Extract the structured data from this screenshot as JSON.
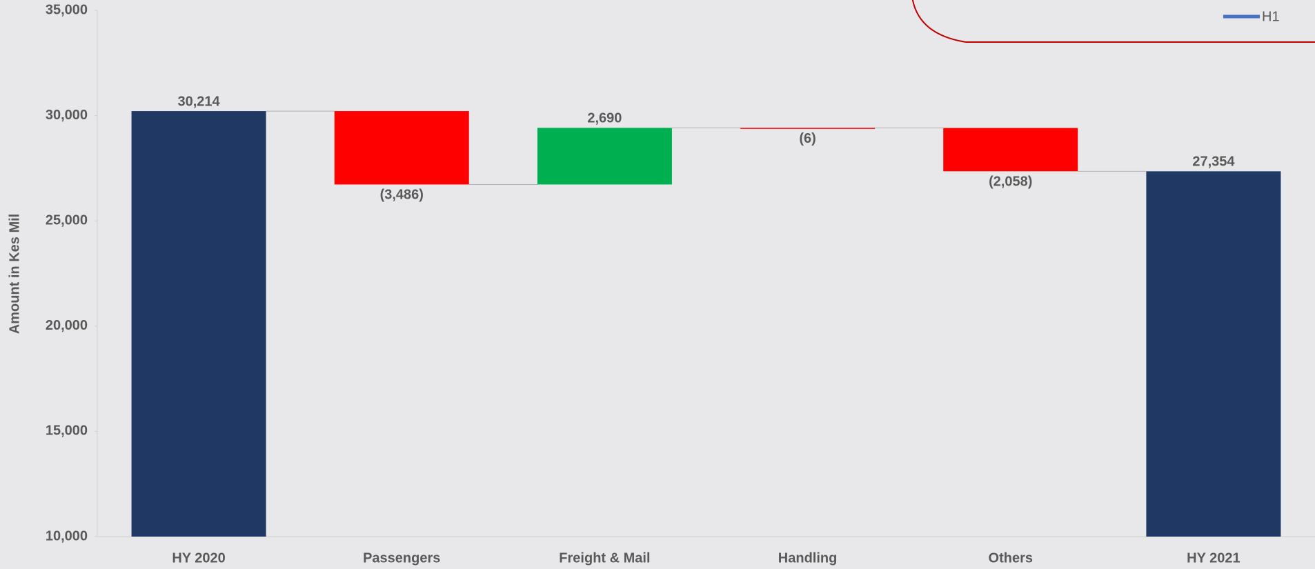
{
  "chart_data": {
    "type": "waterfall",
    "y_axis_label": "Amount in Kes Mil",
    "categories": [
      "HY 2020",
      "Passengers",
      "Freight & Mail",
      "Handling",
      "Others",
      "HY 2021"
    ],
    "values": [
      30214,
      -3486,
      2690,
      -6,
      -2058,
      27354
    ],
    "value_labels": [
      "30,214",
      "(3,486)",
      "2,690",
      "(6)",
      "(2,058)",
      "27,354"
    ],
    "is_total": [
      true,
      false,
      false,
      false,
      false,
      true
    ],
    "colors": [
      "#1f3864",
      "#ff0000",
      "#00b050",
      "#ff0000",
      "#ff0000",
      "#1f3864"
    ],
    "ylim": [
      10000,
      35000
    ],
    "yticks": [
      {
        "value": 10000,
        "label": "10,000"
      },
      {
        "value": 15000,
        "label": "15,000"
      },
      {
        "value": 20000,
        "label": "20,000"
      },
      {
        "value": 25000,
        "label": "25,000"
      },
      {
        "value": 30000,
        "label": "30,000"
      },
      {
        "value": 35000,
        "label": "35,000"
      }
    ],
    "legend_entry": {
      "label": "H1",
      "color": "#4472c4"
    }
  }
}
